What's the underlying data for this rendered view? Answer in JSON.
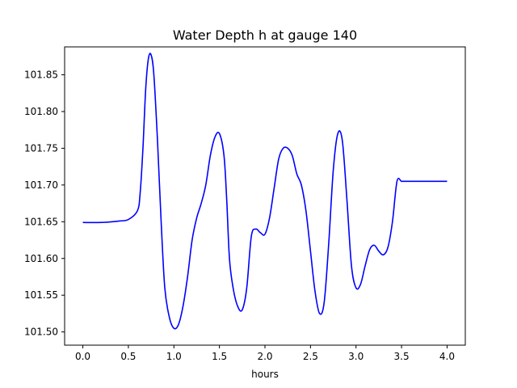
{
  "chart_data": {
    "type": "line",
    "title": "Water Depth h at gauge 140",
    "xlabel": "hours",
    "ylabel": "",
    "xlim": [
      -0.2,
      4.2
    ],
    "ylim": [
      101.482,
      101.888
    ],
    "grid": false,
    "xticks": [
      0.0,
      0.5,
      1.0,
      1.5,
      2.0,
      2.5,
      3.0,
      3.5,
      4.0
    ],
    "xtick_labels": [
      "0.0",
      "0.5",
      "1.0",
      "1.5",
      "2.0",
      "2.5",
      "3.0",
      "3.5",
      "4.0"
    ],
    "yticks": [
      101.5,
      101.55,
      101.6,
      101.65,
      101.7,
      101.75,
      101.8,
      101.85
    ],
    "ytick_labels": [
      "101.50",
      "101.55",
      "101.60",
      "101.65",
      "101.70",
      "101.75",
      "101.80",
      "101.85"
    ],
    "series": [
      {
        "color": "#0000ff",
        "x": [
          0.0,
          0.2,
          0.4,
          0.5,
          0.6,
          0.63,
          0.66,
          0.69,
          0.72,
          0.75,
          0.78,
          0.82,
          0.86,
          0.9,
          0.95,
          1.0,
          1.05,
          1.1,
          1.15,
          1.2,
          1.25,
          1.3,
          1.35,
          1.4,
          1.45,
          1.5,
          1.55,
          1.58,
          1.61,
          1.65,
          1.7,
          1.75,
          1.8,
          1.85,
          1.9,
          1.95,
          2.0,
          2.05,
          2.1,
          2.15,
          2.2,
          2.25,
          2.3,
          2.35,
          2.4,
          2.45,
          2.5,
          2.55,
          2.6,
          2.65,
          2.7,
          2.75,
          2.8,
          2.85,
          2.9,
          2.95,
          3.0,
          3.05,
          3.1,
          3.15,
          3.2,
          3.25,
          3.3,
          3.35,
          3.4,
          3.45,
          3.5,
          3.55,
          3.6,
          3.65,
          3.7,
          3.75,
          3.8,
          3.85,
          3.9,
          3.95,
          4.0
        ],
        "y": [
          101.649,
          101.649,
          101.651,
          101.653,
          101.665,
          101.69,
          101.75,
          101.83,
          101.872,
          101.877,
          101.85,
          101.76,
          101.65,
          101.56,
          101.52,
          101.505,
          101.51,
          101.535,
          101.575,
          101.625,
          101.655,
          101.675,
          101.7,
          101.74,
          101.765,
          101.77,
          101.74,
          101.68,
          101.6,
          101.56,
          101.535,
          101.53,
          101.56,
          101.63,
          101.64,
          101.635,
          101.633,
          101.655,
          101.695,
          101.735,
          101.75,
          101.75,
          101.74,
          101.715,
          101.7,
          101.665,
          101.61,
          101.555,
          101.525,
          101.54,
          101.62,
          101.72,
          101.77,
          101.76,
          101.68,
          101.59,
          101.56,
          101.565,
          101.59,
          101.612,
          101.618,
          101.61,
          101.605,
          101.615,
          101.65,
          101.705,
          101.705,
          101.705,
          101.705,
          101.705,
          101.705,
          101.705,
          101.705,
          101.705,
          101.705,
          101.705,
          101.705
        ]
      }
    ]
  }
}
